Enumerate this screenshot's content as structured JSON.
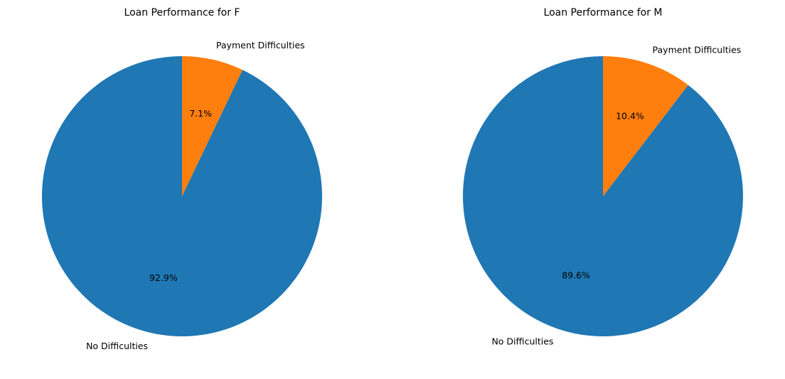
{
  "chart_data": [
    {
      "type": "pie",
      "title": "Loan Performance for F",
      "categories": [
        "Payment Difficulties",
        "No Difficulties"
      ],
      "values": [
        7.1,
        92.9
      ],
      "value_labels": [
        "7.1%",
        "92.9%"
      ],
      "colors": [
        "#ff7f0e",
        "#1f77b4"
      ],
      "start_angle_deg": 90,
      "direction": "clockwise"
    },
    {
      "type": "pie",
      "title": "Loan Performance for M",
      "categories": [
        "Payment Difficulties",
        "No Difficulties"
      ],
      "values": [
        10.4,
        89.6
      ],
      "value_labels": [
        "10.4%",
        "89.6%"
      ],
      "colors": [
        "#ff7f0e",
        "#1f77b4"
      ],
      "start_angle_deg": 90,
      "direction": "clockwise"
    }
  ]
}
